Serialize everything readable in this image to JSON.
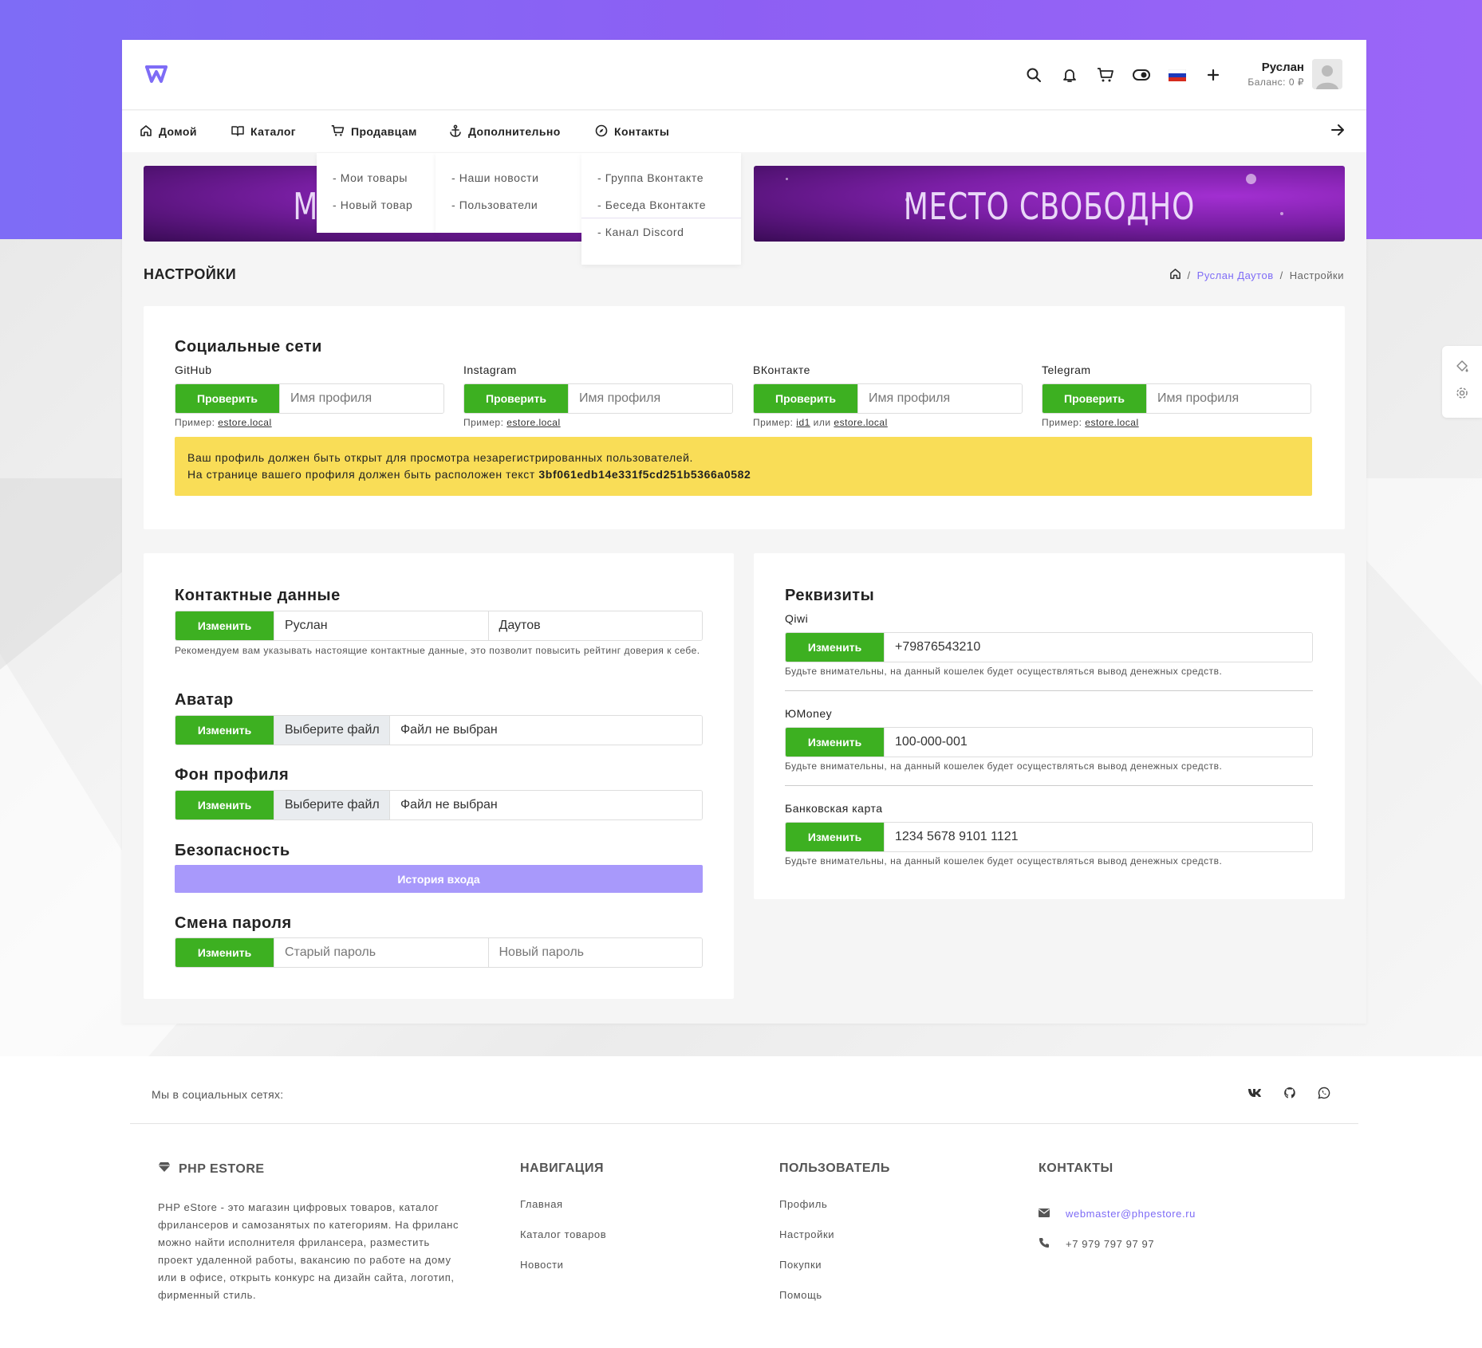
{
  "header": {
    "user_name": "Руслан",
    "balance": "Баланс: 0 ₽",
    "icons": [
      "search-icon",
      "bell-icon",
      "cart-icon",
      "theme-toggle-icon",
      "flag-ru-icon",
      "plus-icon"
    ]
  },
  "nav": {
    "items": [
      {
        "label": "Домой",
        "icon": "home-icon"
      },
      {
        "label": "Каталог",
        "icon": "book-icon"
      },
      {
        "label": "Продавцам",
        "icon": "cart-icon"
      },
      {
        "label": "Дополнительно",
        "icon": "anchor-icon"
      },
      {
        "label": "Контакты",
        "icon": "compass-icon"
      }
    ],
    "sellers_menu": [
      "- Мои товары",
      "- Новый товар"
    ],
    "extra_menu": [
      "- Наши новости",
      "- Пользователи"
    ],
    "contacts_menu": [
      "- Группа Вконтакте",
      "- Беседа Вконтакте",
      "- Канал Discord"
    ]
  },
  "banners": [
    "МЕСТО СВОБОДНО",
    "МЕСТО СВОБОДНО"
  ],
  "page": {
    "title": "НАСТРОЙКИ",
    "breadcrumb_user": "Руслан Даутов",
    "breadcrumb_sep": "/",
    "breadcrumb_current": "Настройки"
  },
  "social": {
    "title": "Социальные сети",
    "networks": [
      {
        "label": "GitHub",
        "button": "Проверить",
        "placeholder": "Имя профиля",
        "hint_prefix": "Пример:",
        "hint_link": "estore.local"
      },
      {
        "label": "Instagram",
        "button": "Проверить",
        "placeholder": "Имя профиля",
        "hint_prefix": "Пример:",
        "hint_link": "estore.local"
      },
      {
        "label": "ВКонтакте",
        "button": "Проверить",
        "placeholder": "Имя профиля",
        "hint_prefix": "Пример:",
        "hint_link": "id1",
        "hint_or": "или",
        "hint_link2": "estore.local"
      },
      {
        "label": "Telegram",
        "button": "Проверить",
        "placeholder": "Имя профиля",
        "hint_prefix": "Пример:",
        "hint_link": "estore.local"
      }
    ],
    "warning_line1": "Ваш профиль должен быть открыт для просмотра незарегистрированных пользователей.",
    "warning_line2_prefix": "На странице вашего профиля должен быть расположен текст",
    "warning_code": "3bf061edb14e331f5cd251b5366a0582"
  },
  "contacts": {
    "title": "Контактные данные",
    "button": "Изменить",
    "first_name": "Руслан",
    "last_name": "Даутов",
    "hint": "Рекомендуем вам указывать настоящие контактные данные, это позволит повысить рейтинг доверия к себе."
  },
  "avatar": {
    "title": "Аватар",
    "button": "Изменить",
    "file_button": "Выберите файл",
    "file_status": "Файл не выбран"
  },
  "background": {
    "title": "Фон профиля",
    "button": "Изменить",
    "file_button": "Выберите файл",
    "file_status": "Файл не выбран"
  },
  "security": {
    "title": "Безопасность",
    "button": "История входа"
  },
  "password": {
    "title": "Смена пароля",
    "button": "Изменить",
    "old_placeholder": "Старый пароль",
    "new_placeholder": "Новый пароль"
  },
  "requisites": {
    "title": "Реквизиты",
    "items": [
      {
        "label": "Qiwi",
        "button": "Изменить",
        "value": "+79876543210",
        "hint": "Будьте внимательны, на данный кошелек будет осуществляться вывод денежных средств."
      },
      {
        "label": "ЮMoney",
        "button": "Изменить",
        "value": "100-000-001",
        "hint": "Будьте внимательны, на данный кошелек будет осуществляться вывод денежных средств."
      },
      {
        "label": "Банковская карта",
        "button": "Изменить",
        "value": "1234 5678 9101 1121",
        "hint": "Будьте внимательны, на данный кошелек будет осуществляться вывод денежных средств."
      }
    ]
  },
  "footer": {
    "social_label": "Мы в социальных сетях:",
    "social_icons": [
      "vk-icon",
      "github-icon",
      "whatsapp-icon"
    ],
    "brand": "PHP ESTORE",
    "description": "PHP eStore - это магазин цифровых товаров, каталог фрилансеров и самозанятых по категориям. На фриланс можно найти исполнителя фрилансера, разместить проект удаленной работы, вакансию по работе на дому или в офисе, открыть конкурс на дизайн сайта, логотип, фирменный стиль.",
    "nav_title": "НАВИГАЦИЯ",
    "nav_links": [
      "Главная",
      "Каталог товаров",
      "Новости"
    ],
    "user_title": "ПОЛЬЗОВАТЕЛЬ",
    "user_links": [
      "Профиль",
      "Настройки",
      "Покупки",
      "Помощь"
    ],
    "contacts_title": "КОНТАКТЫ",
    "email": "webmaster@phpestore.ru",
    "phone": "+7 979 797 97 97"
  },
  "colors": {
    "accent": "#7e6cf6",
    "green": "#3db021",
    "warning": "#f9dd57",
    "purple_button": "#a899fb"
  }
}
